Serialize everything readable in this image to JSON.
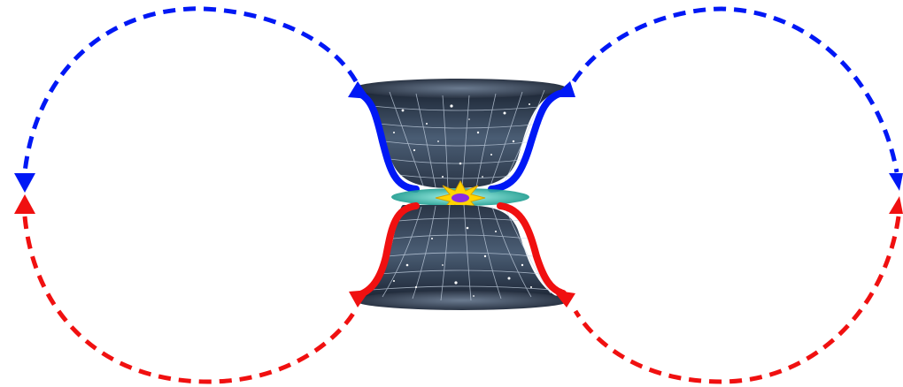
{
  "diagram": {
    "colors": {
      "upper_arrows": "#0018f5",
      "lower_arrows": "#f01010",
      "space_dark": "#1b2433",
      "space_mid": "#4a5d74",
      "grid": "#c9d6e6",
      "bang_outer": "#ffd400",
      "bang_inner": "#8a2be2",
      "ring_glow": "#2fd0c0"
    },
    "upper_funnel": {
      "icon": "expanding-universe-grid",
      "arrow_color": "blue"
    },
    "lower_funnel": {
      "icon": "expanding-universe-grid",
      "arrow_color": "red"
    },
    "center": {
      "icon": "big-bang-starburst"
    },
    "cycles": [
      {
        "side": "left",
        "upper": "blue-dashed",
        "lower": "red-dashed"
      },
      {
        "side": "right",
        "upper": "blue-dashed",
        "lower": "red-dashed"
      }
    ]
  }
}
